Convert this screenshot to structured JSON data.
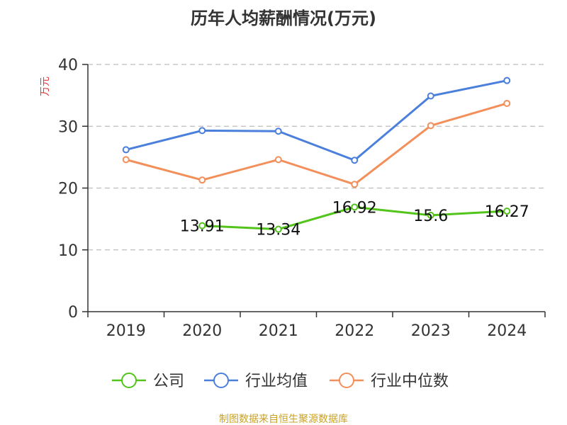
{
  "chart_data": {
    "type": "line",
    "title": "历年人均薪酬情况(万元)",
    "ylabel": "万元",
    "xlabel": "",
    "categories": [
      "2019",
      "2020",
      "2021",
      "2022",
      "2023",
      "2024"
    ],
    "ylim": [
      0,
      40
    ],
    "yticks": [
      "0",
      "10",
      "20",
      "30",
      "40"
    ],
    "grid": true,
    "legend_position": "bottom",
    "series": [
      {
        "name": "公司",
        "color": "#52c41a",
        "values": [
          null,
          13.91,
          13.34,
          16.92,
          15.6,
          16.27
        ],
        "labels": [
          "",
          "13.91",
          "13.34",
          "16.92",
          "15.6",
          "16.27"
        ]
      },
      {
        "name": "行业均值",
        "color": "#4a7fdc",
        "values": [
          26.2,
          29.3,
          29.2,
          24.5,
          34.9,
          37.4
        ]
      },
      {
        "name": "行业中位数",
        "color": "#f28f5a",
        "values": [
          24.6,
          21.3,
          24.6,
          20.6,
          30.1,
          33.7
        ]
      }
    ],
    "source": "制图数据来自恒生聚源数据库"
  }
}
